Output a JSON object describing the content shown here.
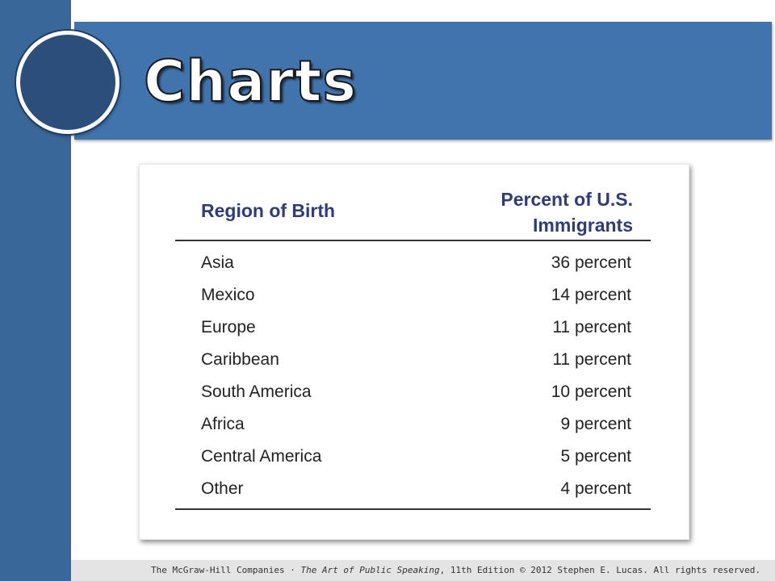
{
  "slide": {
    "title": "Charts"
  },
  "table": {
    "col_region": "Region of Birth",
    "col_percent_line1": "Percent of U.S.",
    "col_percent_line2": "Immigrants",
    "rows": [
      {
        "region": "Asia",
        "percent": "36 percent"
      },
      {
        "region": "Mexico",
        "percent": "14 percent"
      },
      {
        "region": "Europe",
        "percent": "11 percent"
      },
      {
        "region": "Caribbean",
        "percent": "11 percent"
      },
      {
        "region": "South America",
        "percent": "10 percent"
      },
      {
        "region": "Africa",
        "percent": "9 percent"
      },
      {
        "region": "Central America",
        "percent": "5 percent"
      },
      {
        "region": "Other",
        "percent": "4 percent"
      }
    ]
  },
  "footer": {
    "publisher": "The McGraw-Hill Companies",
    "separator": "·",
    "book_title": "The Art of Public Speaking",
    "edition": ", 11th Edition",
    "copyright": "© 2012 Stephen E. Lucas. All rights reserved."
  },
  "colors": {
    "side_bar": "#3a679a",
    "title_box": "#4173ad",
    "header_text": "#2e3d7a"
  }
}
